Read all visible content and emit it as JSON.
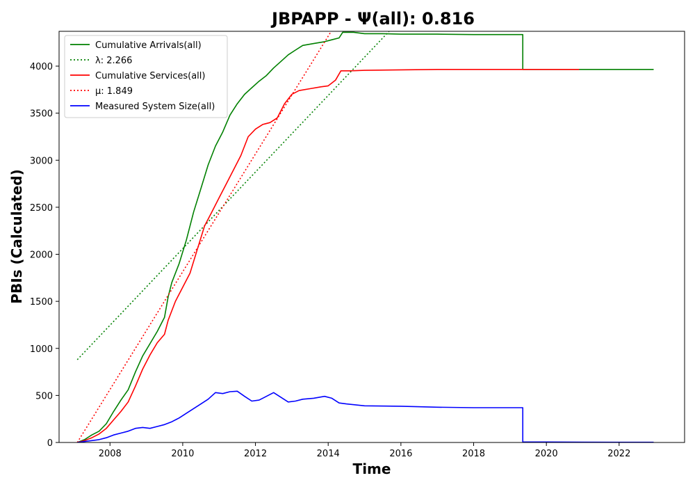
{
  "chart_data": {
    "type": "line",
    "title": "JBPAPP -  Ψ(all): 0.816",
    "xlabel": "Time",
    "ylabel": "PBIs (Calculated)",
    "xlim": [
      2006.6,
      2023.8
    ],
    "ylim": [
      0,
      4370
    ],
    "x_ticks": [
      2008,
      2010,
      2012,
      2014,
      2016,
      2018,
      2020,
      2022
    ],
    "y_ticks": [
      0,
      500,
      1000,
      1500,
      2000,
      2500,
      3000,
      3500,
      4000
    ],
    "grid": false,
    "legend_position": "top-left",
    "series": [
      {
        "name": "Cumulative Arrivals(all)",
        "color": "#008000",
        "style": "solid",
        "x": [
          2007.1,
          2007.3,
          2007.5,
          2007.7,
          2007.9,
          2008.1,
          2008.3,
          2008.5,
          2008.7,
          2008.9,
          2009.1,
          2009.3,
          2009.5,
          2009.6,
          2009.7,
          2009.9,
          2010.1,
          2010.3,
          2010.5,
          2010.7,
          2010.9,
          2011.1,
          2011.3,
          2011.5,
          2011.7,
          2011.9,
          2012.1,
          2012.3,
          2012.5,
          2012.7,
          2012.9,
          2013.1,
          2013.3,
          2013.6,
          2013.9,
          2014.1,
          2014.3,
          2014.4,
          2014.7,
          2015.0,
          2015.5,
          2016.0,
          2017.0,
          2018.0,
          2019.0,
          2019.35,
          2019.35,
          2020.0,
          2021.0,
          2022.0,
          2022.95
        ],
        "y": [
          0,
          30,
          80,
          120,
          200,
          330,
          450,
          560,
          750,
          920,
          1050,
          1180,
          1330,
          1550,
          1700,
          1900,
          2150,
          2450,
          2700,
          2950,
          3150,
          3300,
          3480,
          3600,
          3700,
          3770,
          3840,
          3900,
          3980,
          4050,
          4120,
          4170,
          4220,
          4240,
          4260,
          4280,
          4300,
          4360,
          4360,
          4345,
          4345,
          4340,
          4340,
          4335,
          4335,
          4335,
          3965,
          3965,
          3965,
          3965,
          3965
        ]
      },
      {
        "name": "λ: 2.266",
        "color": "#008000",
        "style": "dotted",
        "x": [
          2007.1,
          2015.7
        ],
        "y": [
          880,
          4380
        ]
      },
      {
        "name": "Cumulative Services(all)",
        "color": "#ff0000",
        "style": "solid",
        "x": [
          2007.1,
          2007.3,
          2007.5,
          2007.7,
          2007.9,
          2008.1,
          2008.3,
          2008.5,
          2008.7,
          2008.9,
          2009.1,
          2009.3,
          2009.5,
          2009.6,
          2009.8,
          2010.0,
          2010.2,
          2010.4,
          2010.6,
          2010.8,
          2011.0,
          2011.2,
          2011.4,
          2011.6,
          2011.8,
          2012.0,
          2012.2,
          2012.4,
          2012.6,
          2012.8,
          2013.0,
          2013.2,
          2013.5,
          2013.8,
          2014.0,
          2014.2,
          2014.35,
          2014.6,
          2015.0,
          2016.0,
          2017.0,
          2018.0,
          2019.0,
          2020.0,
          2020.9
        ],
        "y": [
          0,
          20,
          50,
          90,
          150,
          240,
          330,
          430,
          600,
          780,
          930,
          1060,
          1150,
          1300,
          1500,
          1650,
          1800,
          2050,
          2300,
          2450,
          2600,
          2750,
          2900,
          3050,
          3250,
          3330,
          3380,
          3400,
          3450,
          3600,
          3700,
          3740,
          3760,
          3780,
          3790,
          3850,
          3950,
          3950,
          3955,
          3960,
          3965,
          3965,
          3965,
          3965,
          3965
        ]
      },
      {
        "name": "μ: 1.849",
        "color": "#ff0000",
        "style": "dotted",
        "x": [
          2007.1,
          2014.1
        ],
        "y": [
          0,
          4380
        ]
      },
      {
        "name": "Measured System Size(all)",
        "color": "#0000ff",
        "style": "solid",
        "x": [
          2007.1,
          2007.3,
          2007.5,
          2007.7,
          2007.9,
          2008.1,
          2008.3,
          2008.5,
          2008.7,
          2008.9,
          2009.1,
          2009.3,
          2009.5,
          2009.7,
          2009.9,
          2010.1,
          2010.3,
          2010.5,
          2010.7,
          2010.9,
          2011.1,
          2011.3,
          2011.5,
          2011.7,
          2011.9,
          2012.1,
          2012.3,
          2012.5,
          2012.7,
          2012.9,
          2013.1,
          2013.3,
          2013.6,
          2013.9,
          2014.1,
          2014.3,
          2014.5,
          2015.0,
          2016.0,
          2017.0,
          2018.0,
          2019.0,
          2019.35,
          2019.35,
          2020.0,
          2021.0,
          2022.0,
          2022.95
        ],
        "y": [
          0,
          10,
          20,
          30,
          50,
          80,
          100,
          120,
          150,
          160,
          150,
          170,
          190,
          220,
          260,
          310,
          360,
          410,
          460,
          530,
          520,
          540,
          545,
          490,
          440,
          450,
          490,
          530,
          480,
          430,
          440,
          460,
          470,
          490,
          470,
          420,
          410,
          390,
          385,
          375,
          370,
          370,
          370,
          5,
          5,
          3,
          2,
          2
        ]
      }
    ]
  }
}
